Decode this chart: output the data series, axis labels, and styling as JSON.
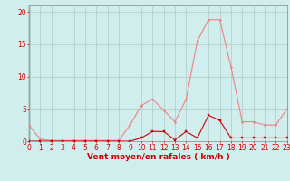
{
  "x": [
    0,
    1,
    2,
    3,
    4,
    5,
    6,
    7,
    8,
    9,
    10,
    11,
    12,
    13,
    14,
    15,
    16,
    17,
    18,
    19,
    20,
    21,
    22,
    23
  ],
  "y_light": [
    2.5,
    0.3,
    0.1,
    0.1,
    0.1,
    0.1,
    0.1,
    0.1,
    0.1,
    2.5,
    5.5,
    6.5,
    4.8,
    3.0,
    6.5,
    15.5,
    18.8,
    18.8,
    11.5,
    3.0,
    3.0,
    2.5,
    2.5,
    5.0
  ],
  "y_dark": [
    0,
    0,
    0,
    0,
    0,
    0,
    0,
    0,
    0,
    0,
    0.5,
    1.5,
    1.5,
    0.2,
    1.5,
    0.5,
    4.0,
    3.2,
    0.5,
    0.5,
    0.5,
    0.5,
    0.5,
    0.5
  ],
  "light_color": "#f08080",
  "dark_color": "#cc0000",
  "bg_color": "#d0eeee",
  "grid_color": "#b0c8c8",
  "xlabel": "Vent moyen/en rafales ( km/h )",
  "xlim": [
    0,
    23
  ],
  "ylim": [
    0,
    21
  ],
  "yticks": [
    0,
    5,
    10,
    15,
    20
  ],
  "xticks": [
    0,
    1,
    2,
    3,
    4,
    5,
    6,
    7,
    8,
    9,
    10,
    11,
    12,
    13,
    14,
    15,
    16,
    17,
    18,
    19,
    20,
    21,
    22,
    23
  ],
  "label_fontsize": 6.5,
  "tick_fontsize": 5.5
}
